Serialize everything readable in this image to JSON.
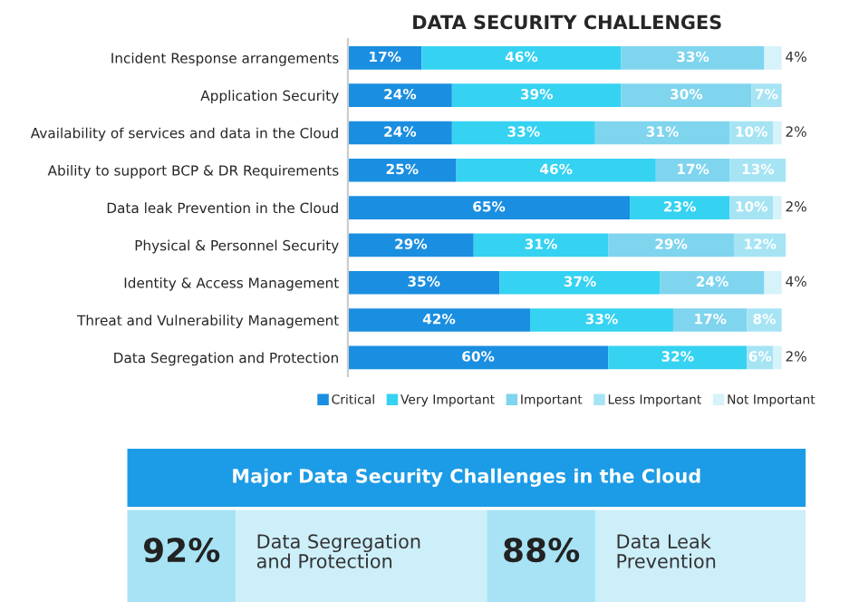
{
  "chart_data": [
    {
      "type": "bar",
      "orientation": "horizontal",
      "stacked": true,
      "title": "DATA SECURITY CHALLENGES",
      "categories": [
        "Incident Response arrangements",
        "Application Security",
        "Availability of services and data in the Cloud",
        "Ability to support BCP & DR Requirements",
        "Data leak Prevention in the Cloud",
        "Physical & Personnel Security",
        "Identity & Access Management",
        "Threat and Vulnerability Management",
        "Data Segregation and Protection"
      ],
      "series": [
        {
          "name": "Critical",
          "color": "#1a8ee0",
          "values": [
            17,
            24,
            24,
            25,
            65,
            29,
            35,
            42,
            60
          ],
          "value_labels": [
            "17%",
            "24%",
            "24%",
            "25%",
            "65%",
            "29%",
            "35%",
            "42%",
            "60%"
          ]
        },
        {
          "name": "Very Important",
          "color": "#35d2f2",
          "values": [
            46,
            39,
            33,
            46,
            23,
            31,
            37,
            33,
            32
          ],
          "value_labels": [
            "46%",
            "39%",
            "33%",
            "46%",
            "23%",
            "31%",
            "37%",
            "33%",
            "32%"
          ]
        },
        {
          "name": "Important",
          "color": "#7fd4ee",
          "values": [
            33,
            30,
            31,
            17,
            null,
            29,
            24,
            17,
            null
          ],
          "value_labels": [
            "33%",
            "30%",
            "31%",
            "17%",
            null,
            "29%",
            "24%",
            "17%",
            null
          ]
        },
        {
          "name": "Less Important",
          "color": "#a6e4f4",
          "values": [
            null,
            7,
            10,
            13,
            10,
            12,
            null,
            8,
            6
          ],
          "value_labels": [
            null,
            "7%",
            "10%",
            "13%",
            "10%",
            "12%",
            null,
            "8%",
            "6%"
          ]
        },
        {
          "name": "Not Important",
          "color": "#d6f3fa",
          "values": [
            4,
            null,
            2,
            null,
            2,
            null,
            4,
            null,
            2
          ],
          "value_labels": [
            "4%",
            null,
            "2%",
            null,
            "2%",
            null,
            "4%",
            null,
            "2%"
          ]
        }
      ],
      "tick_labels": "y",
      "legend": "bottom",
      "grid": false
    },
    {
      "type": "other",
      "title": "Major Data Security Challenges in the Cloud",
      "annotations": [
        "92%",
        "Data Segregation and Protection",
        "88%",
        "Data Leak Prevention"
      ]
    }
  ]
}
